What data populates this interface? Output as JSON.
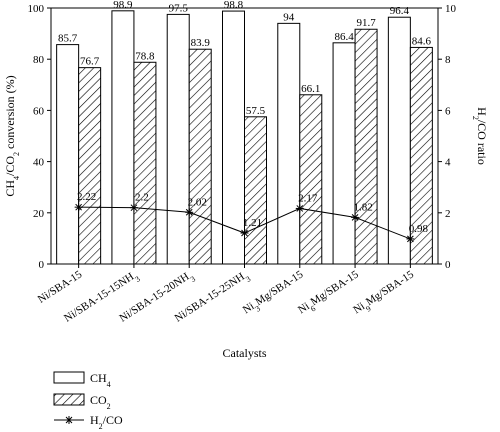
{
  "chart_data": {
    "type": "bar",
    "categories": [
      "Ni/SBA-15",
      "Ni/SBA-15-15NH3",
      "Ni/SBA-15-20NH3",
      "Ni/SBA-15-25NH3",
      "Ni3Mg/SBA-15",
      "Ni6Mg/SBA-15",
      "Ni9Mg/SBA-15"
    ],
    "series": [
      {
        "name": "CH4",
        "type": "bar",
        "axis": "left",
        "pattern": "white",
        "values": [
          85.7,
          98.9,
          97.5,
          98.8,
          94,
          86.4,
          96.4
        ],
        "labels": [
          "85.7",
          "98.9",
          "97.5",
          "98.8",
          "94",
          "86.4",
          "96.4"
        ]
      },
      {
        "name": "CO2",
        "type": "bar",
        "axis": "left",
        "pattern": "hatched",
        "values": [
          76.7,
          78.8,
          83.9,
          57.5,
          66.1,
          91.7,
          84.6
        ],
        "labels": [
          "76.7",
          "78.8",
          "83.9",
          "57.5",
          "66.1",
          "91.7",
          "84.6"
        ]
      },
      {
        "name": "H2/CO",
        "type": "line",
        "axis": "right",
        "marker": "asterisk",
        "values": [
          2.22,
          2.2,
          2.02,
          1.21,
          2.17,
          1.82,
          0.98
        ],
        "labels": [
          "2.22",
          "2.2",
          "2.02",
          "1.21",
          "2.17",
          "1.82",
          "0.98"
        ]
      }
    ],
    "xlabel": "Catalysts",
    "ylabel": "CH4/CO2 conversion (%)",
    "y2label": "H2/CO ratio",
    "ylim": [
      0,
      100
    ],
    "y2lim": [
      0,
      10
    ],
    "yticks": [
      0,
      20,
      40,
      60,
      80,
      100
    ],
    "y2ticks": [
      0,
      2,
      4,
      6,
      8,
      10
    ],
    "grid": false,
    "legend": "bottom-left"
  }
}
